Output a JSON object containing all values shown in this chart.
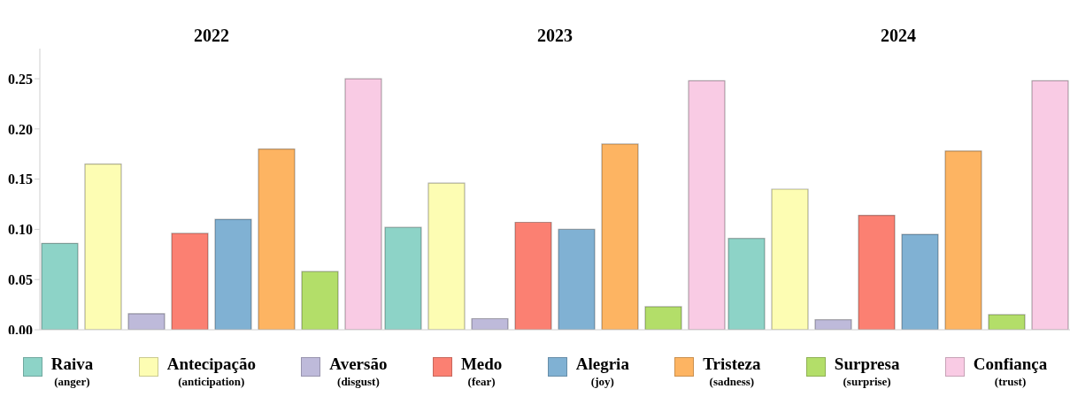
{
  "chart_data": {
    "type": "bar",
    "categories": [
      "2022",
      "2023",
      "2024"
    ],
    "ylim": [
      0,
      0.28
    ],
    "yticks": [
      {
        "value": 0,
        "label": "0.00"
      },
      {
        "value": 0.05,
        "label": "0.05"
      },
      {
        "value": 0.1,
        "label": "0.10"
      },
      {
        "value": 0.15,
        "label": "0.15"
      },
      {
        "value": 0.2,
        "label": "0.20"
      },
      {
        "value": 0.25,
        "label": "0.25"
      }
    ],
    "grid": false,
    "legend": "bottom",
    "series": [
      {
        "name": "Raiva\n(anger)",
        "color": "#8dd3c7",
        "values": [
          0.086,
          0.102,
          0.091
        ]
      },
      {
        "name": "Antecipação\n(anticipation)",
        "color": "#fdfdb3",
        "values": [
          0.165,
          0.146,
          0.14
        ]
      },
      {
        "name": "Aversão\n(disgust)",
        "color": "#bebada",
        "values": [
          0.016,
          0.011,
          0.01
        ]
      },
      {
        "name": "Medo\n(fear)",
        "color": "#fb8072",
        "values": [
          0.096,
          0.107,
          0.114
        ]
      },
      {
        "name": "Alegria\n(joy)",
        "color": "#80b1d3",
        "values": [
          0.11,
          0.1,
          0.095
        ]
      },
      {
        "name": "Tristeza\n(sadness)",
        "color": "#fdb462",
        "values": [
          0.18,
          0.185,
          0.178
        ]
      },
      {
        "name": "Surpresa\n(surprise)",
        "color": "#b3de69",
        "values": [
          0.058,
          0.023,
          0.015
        ]
      },
      {
        "name": "Confiança\n(trust)",
        "color": "#f9cbe4",
        "values": [
          0.25,
          0.248,
          0.248
        ]
      }
    ]
  }
}
